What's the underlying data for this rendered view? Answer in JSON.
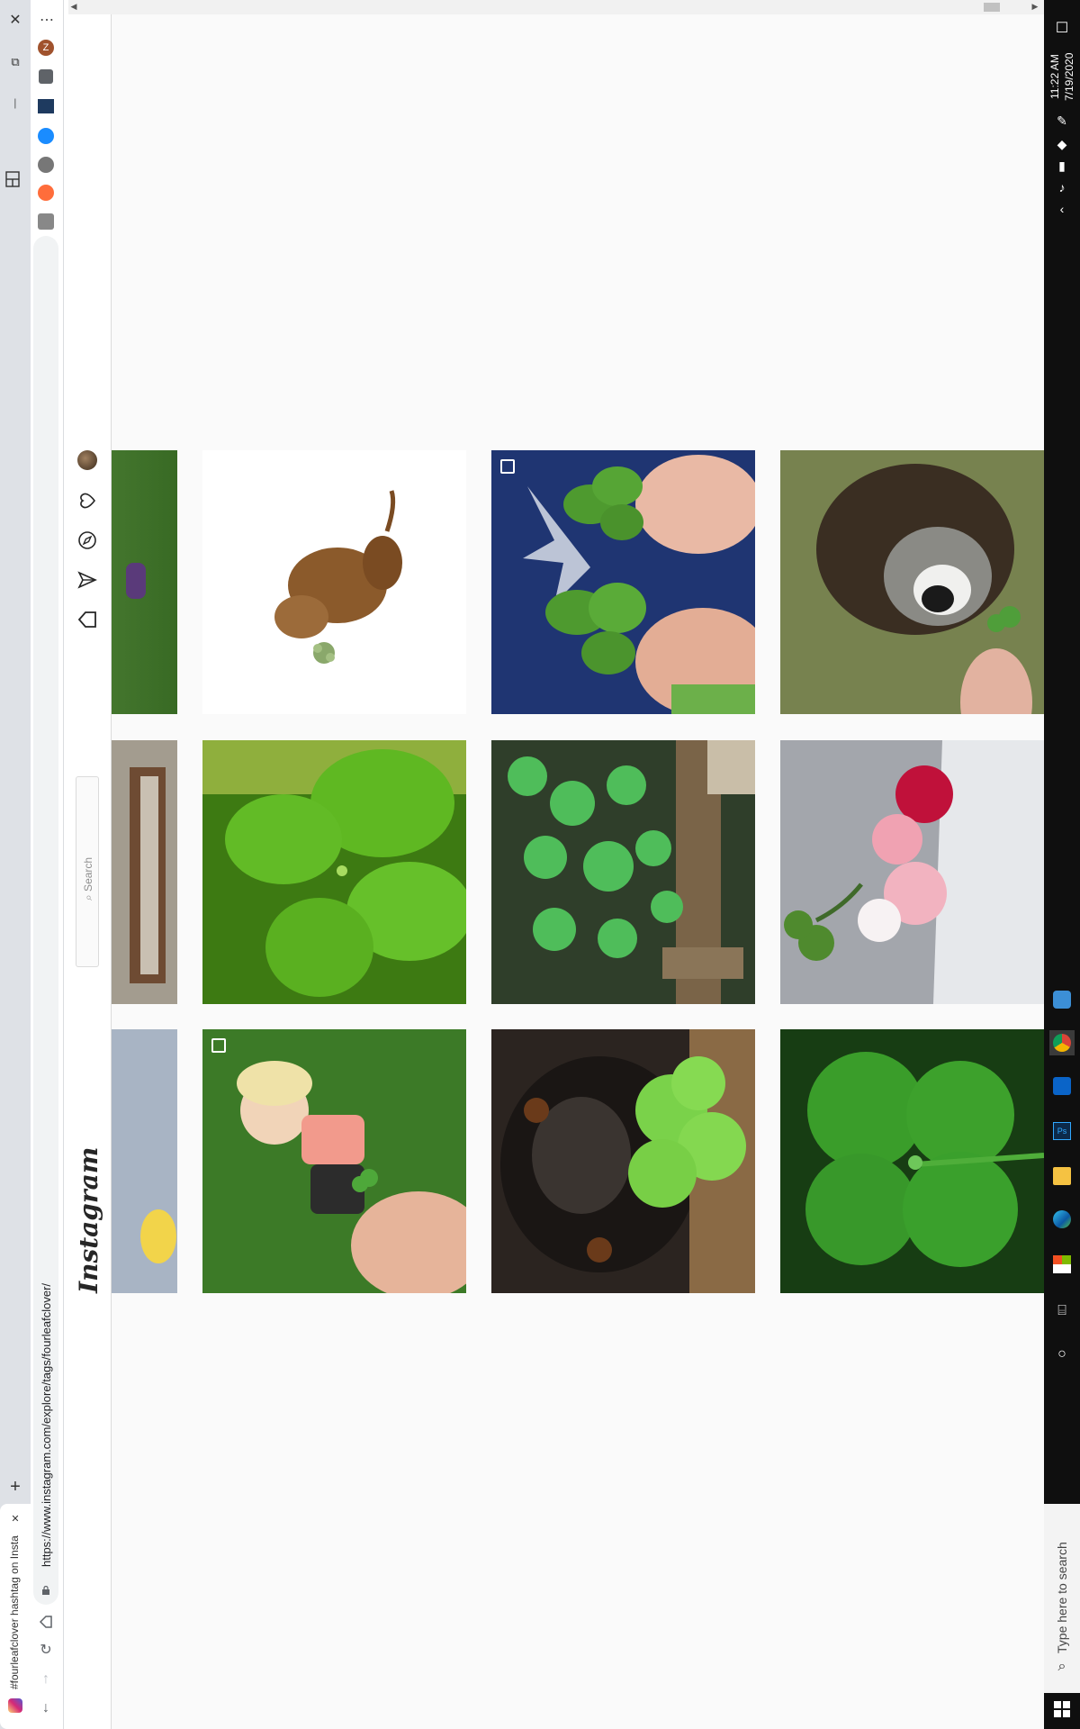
{
  "browser": {
    "tab_title": "#fourleafclover hashtag on Insta",
    "tab_close": "✕",
    "new_tab": "+",
    "url": "https://www.instagram.com/explore/tags/fourleafclover/",
    "window_controls": [
      "✕",
      "⧉",
      "—"
    ]
  },
  "instagram": {
    "logo": "Instagram",
    "search_placeholder": "Search",
    "search_icon": "search-icon",
    "nav_icons": [
      "home-icon",
      "direct-icon",
      "explore-icon",
      "activity-icon",
      "profile-avatar"
    ]
  },
  "posts": [
    {
      "col": 0,
      "desc": "partial-dog-photo"
    },
    {
      "col": 1,
      "desc": "watercolor-puppy-with-clover"
    },
    {
      "col": 2,
      "desc": "hands-holding-clovers-leafs-shirt",
      "multi": true
    },
    {
      "col": 3,
      "desc": "dog-sniffing-clover"
    },
    {
      "col": 0,
      "desc": "partial-window-frame"
    },
    {
      "col": 1,
      "desc": "closeup-four-leaf-clover"
    },
    {
      "col": 2,
      "desc": "clover-patch-by-wood"
    },
    {
      "col": 3,
      "desc": "carnations-in-vase-with-clover"
    },
    {
      "col": 0,
      "desc": "partial-grey-photo"
    },
    {
      "col": 1,
      "desc": "toddler-with-clover",
      "multi": true
    },
    {
      "col": 2,
      "desc": "dog-nose-with-clover"
    },
    {
      "col": 3,
      "desc": "green-four-leaf-clover"
    }
  ],
  "taskbar": {
    "time": "11:22 AM",
    "date": "7/19/2020",
    "search_placeholder": "Type here to search"
  },
  "colors": {
    "ig_background": "#fafafa",
    "taskbar": "#0f0f0f",
    "clover_green": "#3a9d2a"
  }
}
